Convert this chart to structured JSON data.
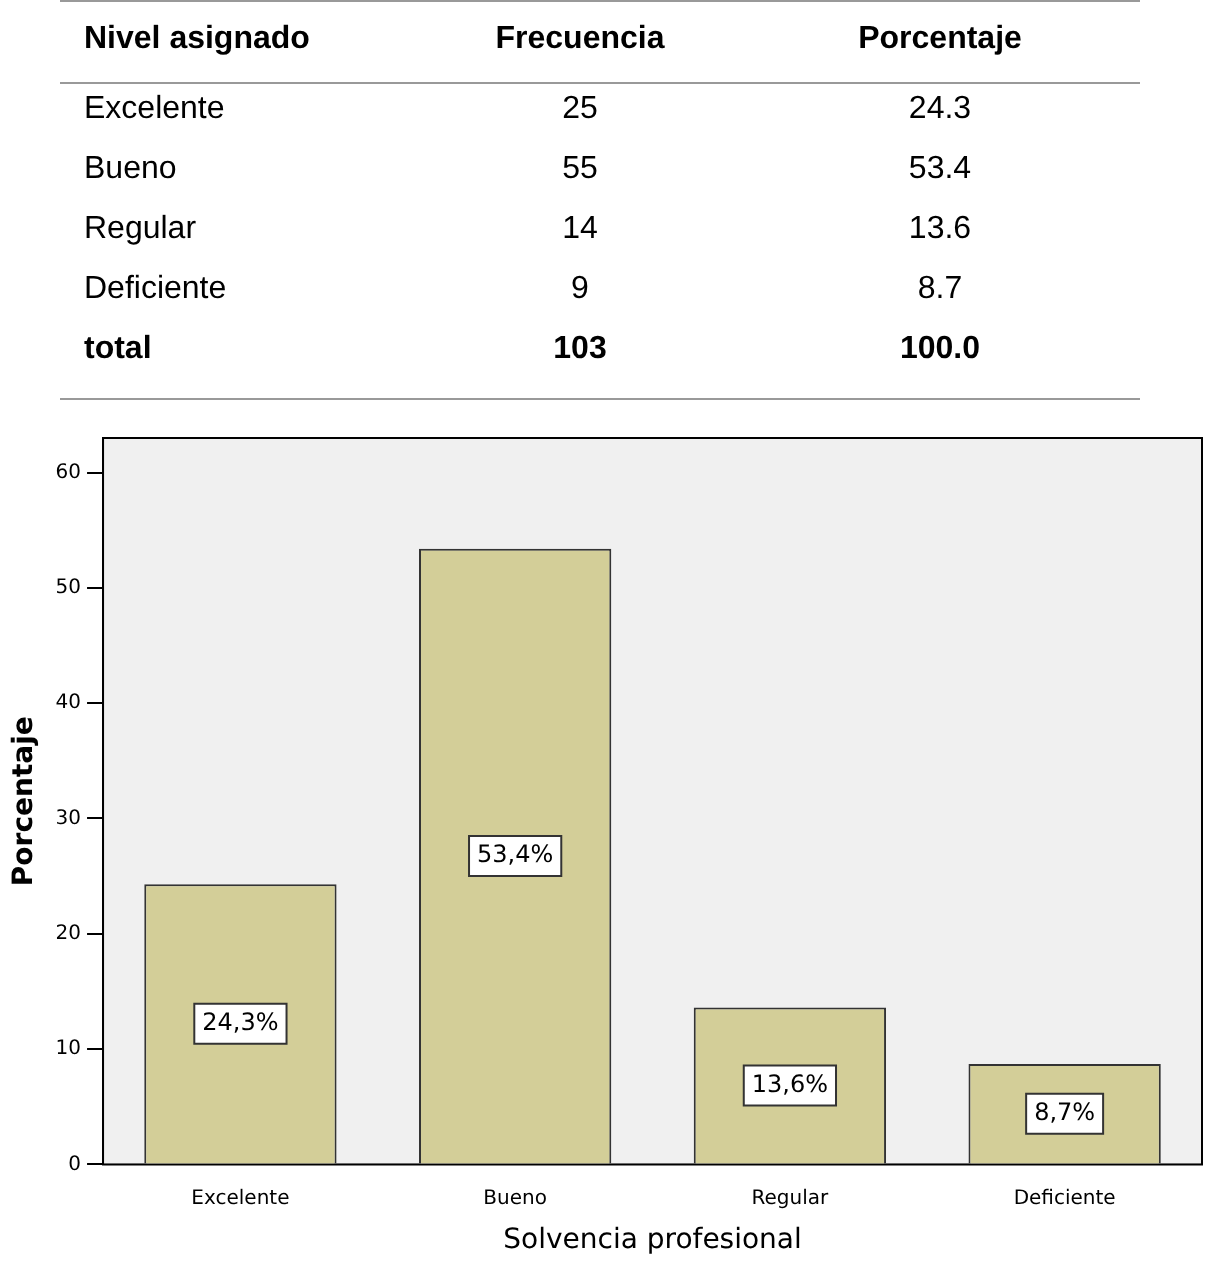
{
  "chart_data": [
    {
      "type": "other",
      "annotations": [
        "Nivel asignado",
        "Frecuencia",
        "Porcentaje",
        "Excelente",
        "25",
        "24.3",
        "Bueno",
        "55",
        "53.4",
        "Regular",
        "14",
        "13.6",
        "Deficiente",
        "9",
        "8.7",
        "total",
        "103",
        "100.0"
      ]
    },
    {
      "type": "bar",
      "xlabel": "Solvencia profesional",
      "ylabel": "Porcentaje",
      "categories": [
        "Excelente",
        "Bueno",
        "Regular",
        "Deficiente"
      ],
      "values": [
        24.3,
        53.4,
        13.6,
        8.7
      ],
      "value_labels": [
        "24,3%",
        "53,4%",
        "13,6%",
        "8,7%"
      ],
      "color": "#d3ce98",
      "ylim": [
        0,
        63
      ],
      "yticks": [
        0,
        10,
        20,
        30,
        40,
        50,
        60
      ],
      "grid": false,
      "legend": false
    }
  ]
}
